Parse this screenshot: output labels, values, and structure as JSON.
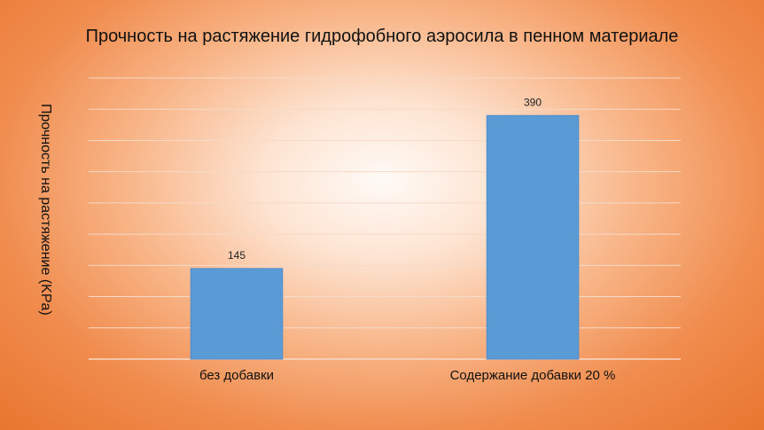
{
  "chart_data": {
    "type": "bar",
    "title": "Прочность на растяжение гидрофобного аэросила в пенном материале",
    "ylabel": "Прочность на растяжение (KPa)",
    "xlabel": "",
    "categories": [
      "без добавки",
      "Содержание добавки 20 %"
    ],
    "values": [
      145,
      390
    ],
    "data_labels": [
      "145",
      "390"
    ],
    "ylim": [
      0,
      450
    ],
    "y_gridline_step": 50,
    "y_tick_labels_shown": false,
    "grid": true,
    "legend": "none",
    "bar_color": "#5b9bd5",
    "gridline_color": "#f6d9c6"
  }
}
